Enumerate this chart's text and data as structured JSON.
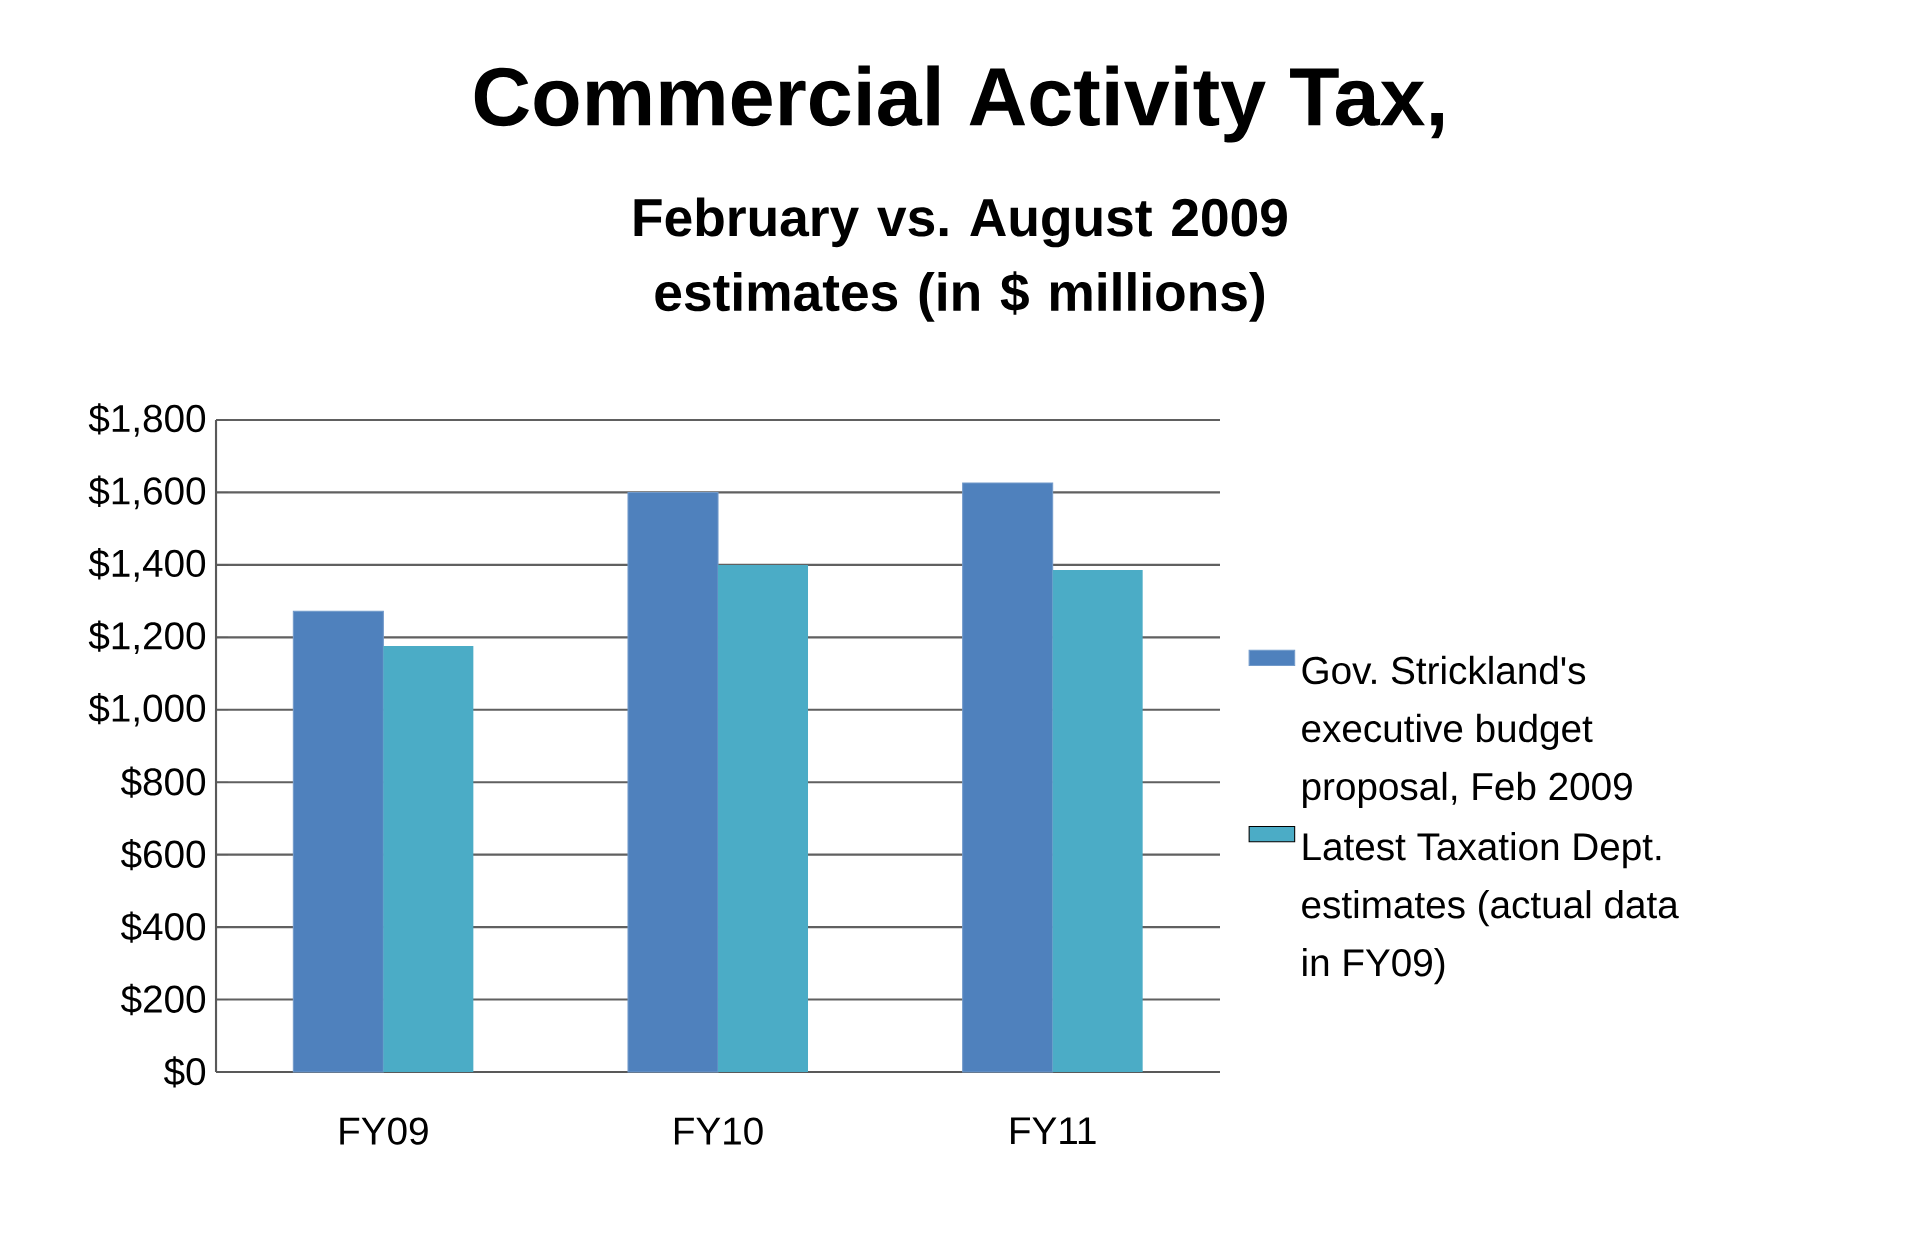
{
  "chart_data": {
    "type": "bar",
    "title": "Commercial Activity Tax,",
    "subtitle": "February vs. August 2009 estimates (in $ millions)",
    "categories": [
      "FY09",
      "FY10",
      "FY11"
    ],
    "series": [
      {
        "name": "Gov. Strickland's executive budget proposal, Feb 2009",
        "color": "#4f81bd",
        "values": [
          1272,
          1600,
          1626
        ]
      },
      {
        "name": "Latest  Taxation Dept. estimates (actual data in FY09)",
        "color": "#4bacc6",
        "values": [
          1176,
          1400,
          1386
        ]
      }
    ],
    "ylim": [
      0,
      1800
    ],
    "yticks": [
      {
        "value": 0,
        "label": "$0"
      },
      {
        "value": 200,
        "label": "$200"
      },
      {
        "value": 400,
        "label": "$400"
      },
      {
        "value": 600,
        "label": "$600"
      },
      {
        "value": 800,
        "label": "$800"
      },
      {
        "value": 1000,
        "label": "$1,000"
      },
      {
        "value": 1200,
        "label": "$1,200"
      },
      {
        "value": 1400,
        "label": "$1,400"
      },
      {
        "value": 1600,
        "label": "$1,600"
      },
      {
        "value": 1800,
        "label": "$1,800"
      }
    ],
    "grid": "y",
    "legend": "right"
  }
}
